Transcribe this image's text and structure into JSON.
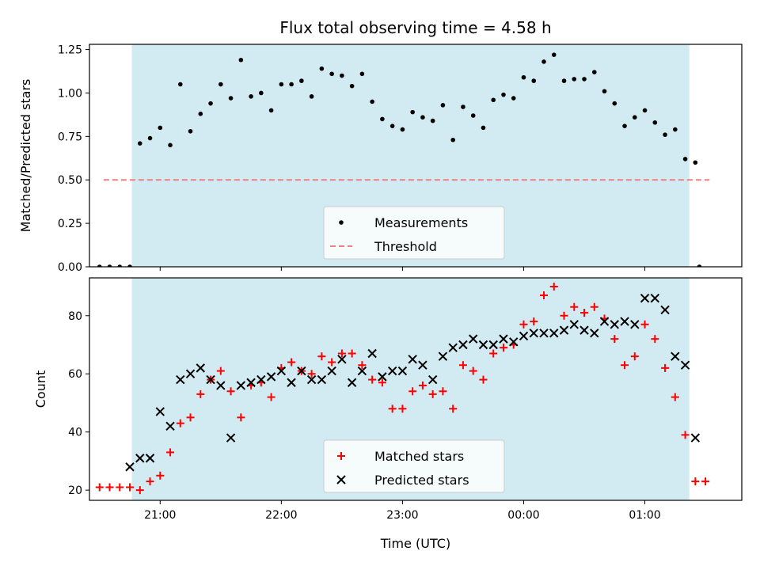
{
  "chart_data": {
    "title": "Flux total observing time = 4.58 h",
    "x_axis": {
      "label": "Time (UTC)",
      "start": "20:25",
      "end": "01:48",
      "tick_labels": [
        "21:00",
        "22:00",
        "23:00",
        "00:00",
        "01:00"
      ],
      "tick_times": [
        "21:00",
        "22:00",
        "23:00",
        "00:00",
        "01:00"
      ]
    },
    "observing_window": {
      "start": "20:46",
      "end": "01:22",
      "color": "#add8e6"
    },
    "panels": [
      {
        "type": "scatter",
        "ylabel": "Matched/Predicted stars",
        "ylim": [
          0,
          1.28
        ],
        "yticks": [
          "0.00",
          "0.25",
          "0.50",
          "0.75",
          "1.00",
          "1.25"
        ],
        "threshold": {
          "name": "Threshold",
          "value": 0.5,
          "x_start": "20:32",
          "x_end": "01:32",
          "color": "#f08080"
        },
        "legend": {
          "position": "lower center",
          "entries": [
            "Measurements",
            "Threshold"
          ]
        },
        "series": [
          {
            "name": "Measurements",
            "marker": "dot",
            "color": "#000000",
            "x": [
              "20:35",
              "20:40",
              "20:45",
              "20:50",
              "20:55",
              "21:00",
              "21:05",
              "21:10",
              "21:15",
              "21:20",
              "21:25",
              "21:30",
              "21:35",
              "21:40",
              "21:45",
              "21:50",
              "21:55",
              "22:00",
              "22:05",
              "22:10",
              "22:15",
              "22:20",
              "22:25",
              "22:30",
              "22:35",
              "22:40",
              "22:45",
              "22:50",
              "22:55",
              "23:00",
              "23:05",
              "23:10",
              "23:15",
              "23:20",
              "23:25",
              "23:30",
              "23:35",
              "23:40",
              "23:45",
              "23:50",
              "23:55",
              "00:00",
              "00:05",
              "00:10",
              "00:15",
              "00:20",
              "00:25",
              "00:30",
              "00:35",
              "00:40",
              "00:45",
              "00:50",
              "00:55",
              "01:00",
              "01:05",
              "01:10",
              "01:15",
              "01:20",
              "01:25"
            ],
            "y": [
              0.0,
              0.0,
              0.0,
              0.71,
              0.74,
              0.8,
              0.7,
              1.05,
              0.78,
              0.88,
              0.94,
              1.05,
              0.97,
              1.19,
              0.98,
              1.0,
              0.9,
              1.05,
              1.05,
              1.07,
              0.98,
              1.14,
              1.11,
              1.1,
              1.04,
              1.11,
              0.95,
              0.85,
              0.81,
              0.79,
              0.89,
              0.86,
              0.84,
              0.93,
              0.73,
              0.92,
              0.87,
              0.8,
              0.96,
              0.99,
              0.97,
              1.09,
              1.07,
              1.18,
              1.22,
              1.07,
              1.08,
              1.08,
              1.12,
              1.01,
              0.94,
              0.81,
              0.86,
              0.9,
              0.83,
              0.76,
              0.79,
              0.62,
              0.6
            ],
            "x_extra": [
              "20:30",
              "01:27"
            ],
            "y_extra": [
              0.0,
              0.0
            ]
          }
        ]
      },
      {
        "type": "scatter",
        "ylabel": "Count",
        "ylim": [
          16.5,
          93
        ],
        "yticks": [
          "20",
          "40",
          "60",
          "80"
        ],
        "legend": {
          "position": "lower center",
          "entries": [
            "Matched stars",
            "Predicted stars"
          ]
        },
        "series": [
          {
            "name": "Matched stars",
            "marker": "plus",
            "color": "#ff0000",
            "x": [
              "20:30",
              "20:35",
              "20:40",
              "20:45",
              "20:50",
              "20:55",
              "21:00",
              "21:05",
              "21:10",
              "21:15",
              "21:20",
              "21:25",
              "21:30",
              "21:35",
              "21:40",
              "21:45",
              "21:50",
              "21:55",
              "22:00",
              "22:05",
              "22:10",
              "22:15",
              "22:20",
              "22:25",
              "22:30",
              "22:35",
              "22:40",
              "22:45",
              "22:50",
              "22:55",
              "23:00",
              "23:05",
              "23:10",
              "23:15",
              "23:20",
              "23:25",
              "23:30",
              "23:35",
              "23:40",
              "23:45",
              "23:50",
              "23:55",
              "00:00",
              "00:05",
              "00:10",
              "00:15",
              "00:20",
              "00:25",
              "00:30",
              "00:35",
              "00:40",
              "00:45",
              "00:50",
              "00:55",
              "01:00",
              "01:05",
              "01:10",
              "01:15",
              "01:20",
              "01:25",
              "01:30"
            ],
            "y": [
              21,
              21,
              21,
              21,
              20,
              23,
              25,
              33,
              43,
              45,
              53,
              58,
              61,
              54,
              45,
              56,
              57,
              52,
              62,
              64,
              61,
              60,
              66,
              64,
              67,
              67,
              63,
              58,
              57,
              48,
              48,
              54,
              56,
              53,
              54,
              48,
              63,
              61,
              58,
              67,
              69,
              70,
              77,
              78,
              87,
              90,
              80,
              83,
              81,
              83,
              79,
              72,
              63,
              66,
              77,
              72,
              62,
              52,
              39,
              23,
              23
            ]
          },
          {
            "name": "Predicted stars",
            "marker": "x",
            "color": "#000000",
            "x": [
              "20:45",
              "20:50",
              "20:55",
              "21:00",
              "21:05",
              "21:10",
              "21:15",
              "21:20",
              "21:25",
              "21:30",
              "21:35",
              "21:40",
              "21:45",
              "21:50",
              "21:55",
              "22:00",
              "22:05",
              "22:10",
              "22:15",
              "22:20",
              "22:25",
              "22:30",
              "22:35",
              "22:40",
              "22:45",
              "22:50",
              "22:55",
              "23:00",
              "23:05",
              "23:10",
              "23:15",
              "23:20",
              "23:25",
              "23:30",
              "23:35",
              "23:40",
              "23:45",
              "23:50",
              "23:55",
              "00:00",
              "00:05",
              "00:10",
              "00:15",
              "00:20",
              "00:25",
              "00:30",
              "00:35",
              "00:40",
              "00:45",
              "00:50",
              "00:55",
              "01:00",
              "01:05",
              "01:10",
              "01:15",
              "01:20",
              "01:25"
            ],
            "y": [
              28,
              31,
              31,
              47,
              42,
              58,
              60,
              62,
              58,
              56,
              38,
              56,
              57,
              58,
              59,
              61,
              57,
              61,
              58,
              58,
              61,
              65,
              57,
              61,
              67,
              59,
              61,
              61,
              65,
              63,
              58,
              66,
              69,
              70,
              72,
              70,
              70,
              72,
              71,
              73,
              74,
              74,
              74,
              75,
              77,
              75,
              74,
              78,
              77,
              78,
              77,
              86,
              86,
              82,
              66,
              63,
              38
            ]
          }
        ]
      }
    ]
  }
}
